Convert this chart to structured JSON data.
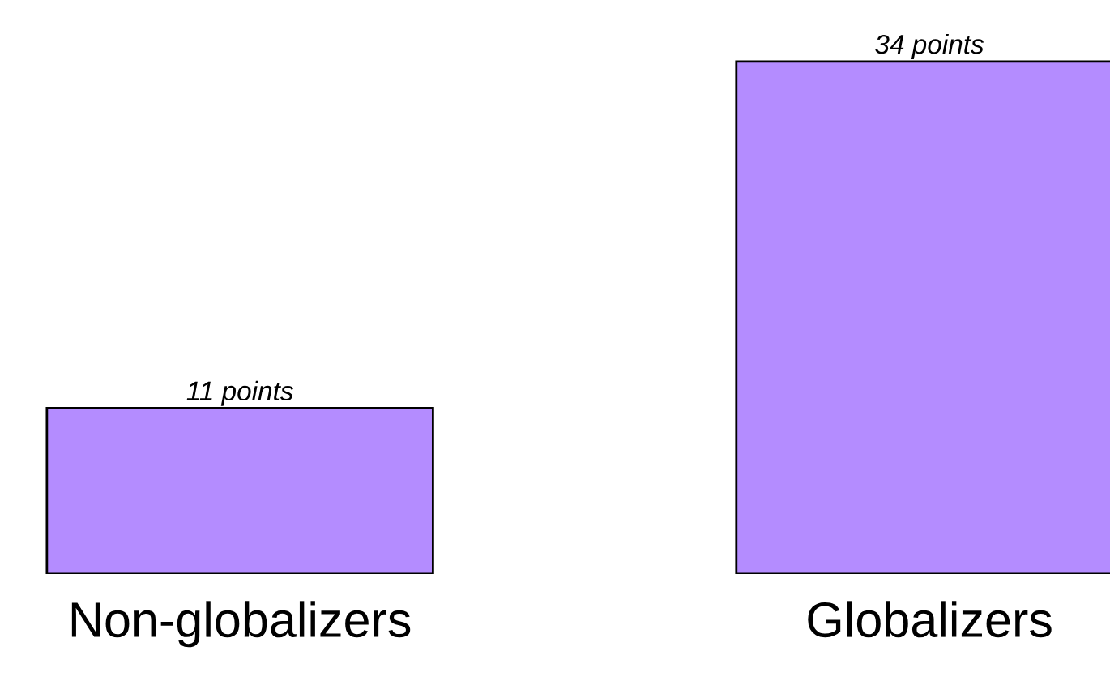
{
  "chart_data": {
    "type": "bar",
    "categories": [
      "Non-globalizers",
      "Globalizers"
    ],
    "values": [
      11,
      34
    ],
    "value_labels": [
      "11 points",
      "34 points"
    ],
    "color": "#b48cff",
    "grid": false
  }
}
